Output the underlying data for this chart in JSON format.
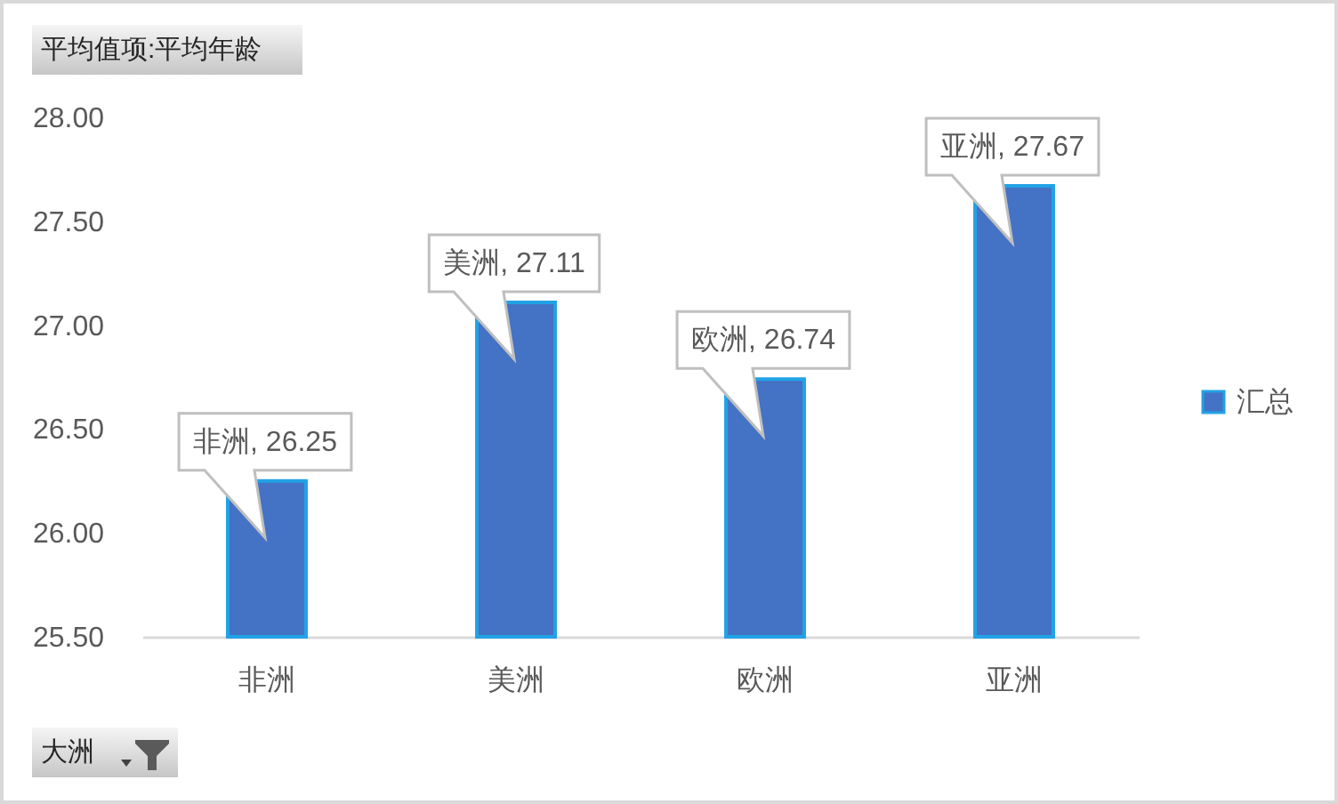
{
  "chart_data": {
    "type": "bar",
    "ylabel": "平均值项:平均年龄",
    "xlabel": "大洲",
    "categories": [
      "非洲",
      "美洲",
      "欧洲",
      "亚洲"
    ],
    "series": [
      {
        "name": "汇总",
        "color": "#4472c4",
        "values": [
          26.25,
          27.11,
          26.74,
          27.67
        ],
        "value_labels": [
          "非洲, 26.25",
          "美洲, 27.11",
          "欧洲, 26.74",
          "亚洲, 27.67"
        ]
      }
    ],
    "ylim": [
      25.5,
      28
    ],
    "yticks": [
      {
        "value": 25.5,
        "label": "25.50"
      },
      {
        "value": 26,
        "label": "26.00"
      },
      {
        "value": 26.5,
        "label": "26.50"
      },
      {
        "value": 27,
        "label": "27.00"
      },
      {
        "value": 27.5,
        "label": "27.50"
      },
      {
        "value": 28,
        "label": "28.00"
      }
    ],
    "legend": "right"
  }
}
